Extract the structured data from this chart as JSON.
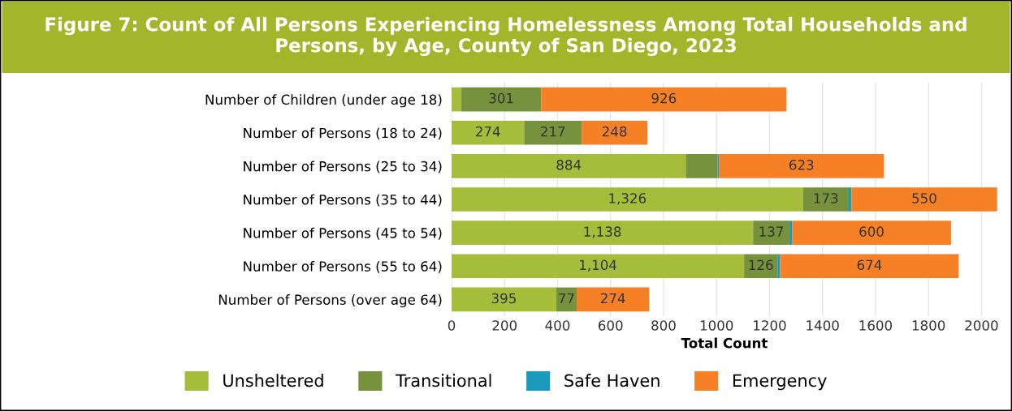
{
  "chart_data": {
    "type": "bar",
    "orientation": "horizontal",
    "stacked": true,
    "title": "Figure 7: Count of All Persons Experiencing Homelessness Among Total Households and Persons, by Age, County of San Diego, 2023",
    "xlabel": "Total Count",
    "categories": [
      "Number of Children (under age 18)",
      "Number of Persons (18 to 24)",
      "Number of Persons (25 to 34)",
      "Number of Persons (35 to 44)",
      "Number of Persons (45 to 54)",
      "Number of Persons (55 to 64)",
      "Number of Persons (over age 64)"
    ],
    "series": [
      {
        "name": "Unsheltered",
        "color": "#a5bd3b",
        "values": [
          37,
          274,
          884,
          1326,
          1138,
          1104,
          395
        ],
        "value_labels": [
          null,
          "274",
          "884",
          "1,326",
          "1,138",
          "1,104",
          "395"
        ]
      },
      {
        "name": "Transitional",
        "color": "#76923c",
        "values": [
          301,
          217,
          120,
          173,
          137,
          126,
          77
        ],
        "value_labels": [
          "301",
          "217",
          null,
          "173",
          "137",
          "126",
          "77"
        ]
      },
      {
        "name": "Safe Haven",
        "color": "#1a9bbd",
        "values": [
          null,
          null,
          5,
          10,
          10,
          10,
          null
        ],
        "value_labels": [
          null,
          null,
          null,
          null,
          null,
          null,
          null
        ]
      },
      {
        "name": "Emergency",
        "color": "#f58025",
        "values": [
          926,
          248,
          623,
          550,
          600,
          674,
          274
        ],
        "value_labels": [
          "926",
          "248",
          "623",
          "550",
          "600",
          "674",
          "274"
        ]
      }
    ],
    "xlim": [
      0,
      2060
    ],
    "xticks": [
      0,
      200,
      400,
      600,
      800,
      1000,
      1200,
      1400,
      1600,
      1800,
      2000
    ],
    "grid": "x",
    "legend": "bottom"
  }
}
